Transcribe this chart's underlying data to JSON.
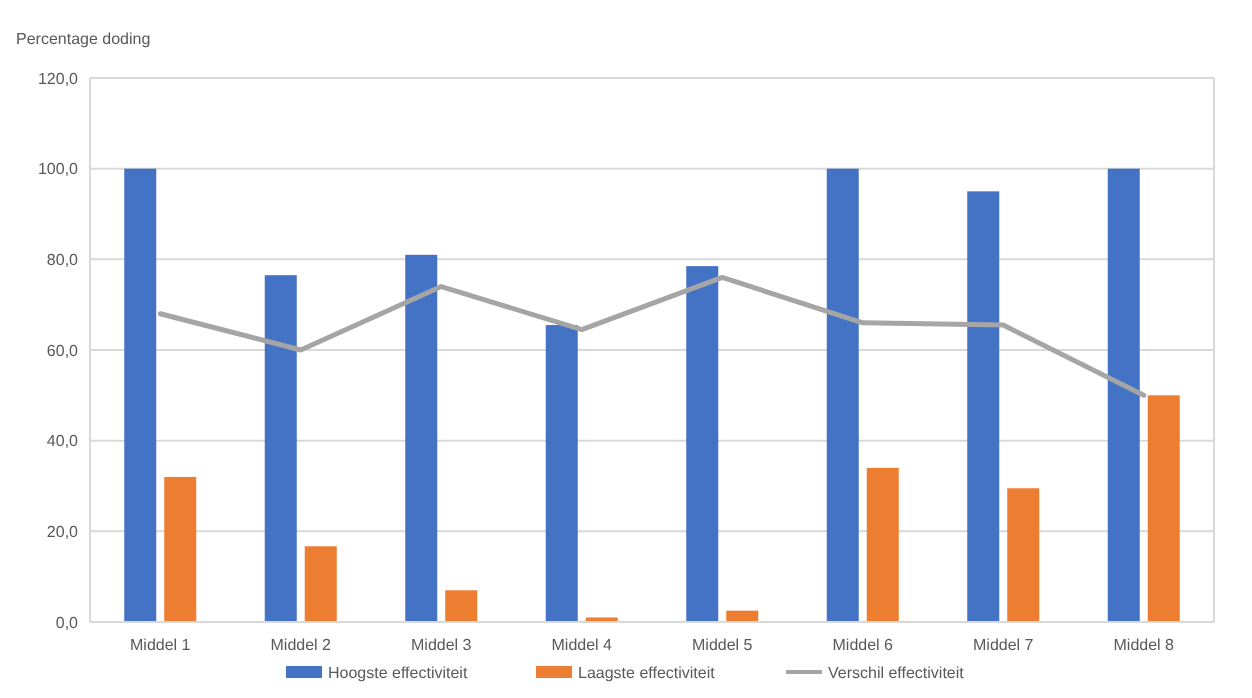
{
  "chart_data": {
    "type": "bar",
    "ylabel": "Percentage doding",
    "categories": [
      "Middel 1",
      "Middel 2",
      "Middel 3",
      "Middel 4",
      "Middel 5",
      "Middel 6",
      "Middel 7",
      "Middel 8"
    ],
    "series": [
      {
        "name": "Hoogste effectiviteit",
        "color": "#4472c4",
        "values": [
          100,
          76.5,
          81,
          65.5,
          78.5,
          100,
          95,
          100
        ]
      },
      {
        "name": "Laagste effectiviteit",
        "color": "#ed7d31",
        "values": [
          32,
          16.7,
          7,
          1,
          2.5,
          34,
          29.5,
          50
        ]
      },
      {
        "name": "Verschil effectiviteit",
        "type": "line",
        "color": "#a5a5a5",
        "values": [
          68,
          60,
          74,
          64.5,
          76,
          66,
          65.5,
          50
        ]
      }
    ],
    "ylim": [
      0,
      120
    ],
    "yticks": [
      {
        "value": 0,
        "label": "0,0"
      },
      {
        "value": 20,
        "label": "20,0"
      },
      {
        "value": 40,
        "label": "40,0"
      },
      {
        "value": 60,
        "label": "60,0"
      },
      {
        "value": 80,
        "label": "80,0"
      },
      {
        "value": 100,
        "label": "100,0"
      },
      {
        "value": 120,
        "label": "120,0"
      }
    ],
    "grid": "y",
    "legend": "bottom"
  }
}
